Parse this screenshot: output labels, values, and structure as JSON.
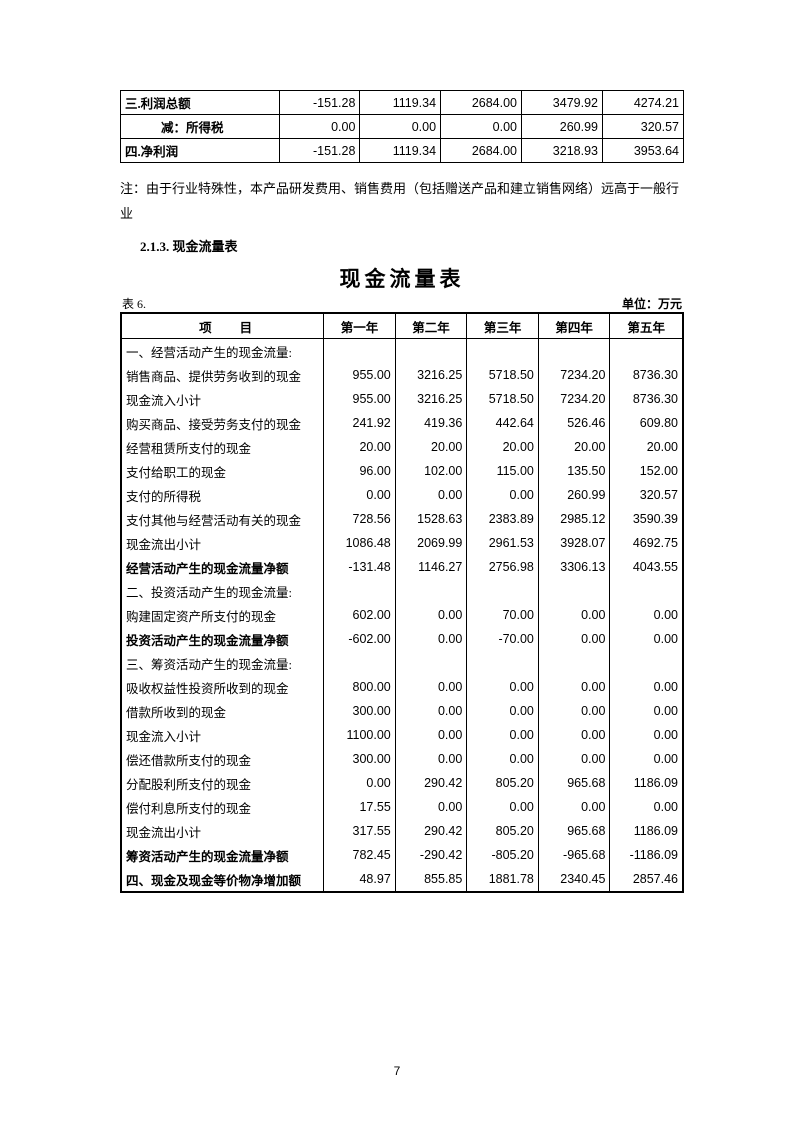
{
  "small_table": {
    "type": "table",
    "columns_count": 6,
    "rows": [
      {
        "label": "三.利润总额",
        "bold": true,
        "indent": false,
        "values": [
          "-151.28",
          "1119.34",
          "2684.00",
          "3479.92",
          "4274.21"
        ]
      },
      {
        "label": "减：所得税",
        "bold": true,
        "indent": true,
        "values": [
          "0.00",
          "0.00",
          "0.00",
          "260.99",
          "320.57"
        ]
      },
      {
        "label": "四.净利润",
        "bold": true,
        "indent": false,
        "values": [
          "-151.28",
          "1119.34",
          "2684.00",
          "3218.93",
          "3953.64"
        ]
      }
    ],
    "text_color": "#000000",
    "border_color": "#000000",
    "fontsize": 12.5
  },
  "note_text": "注：由于行业特殊性，本产品研发费用、销售费用（包括赠送产品和建立销售网络）远高于一般行业",
  "subsection_label": "2.1.3. 现金流量表",
  "main_title": "现金流量表",
  "table_number_label": "表 6.",
  "unit_label": "单位：万元",
  "main_table": {
    "type": "table",
    "header": {
      "item": "项目",
      "years": [
        "第一年",
        "第二年",
        "第三年",
        "第四年",
        "第五年"
      ]
    },
    "rows": [
      {
        "label": "一、经营活动产生的现金流量:",
        "level": 1,
        "bold": false,
        "values": [
          "",
          "",
          "",
          "",
          ""
        ]
      },
      {
        "label": "销售商品、提供劳务收到的现金",
        "level": 2,
        "bold": false,
        "values": [
          "955.00",
          "3216.25",
          "5718.50",
          "7234.20",
          "8736.30"
        ]
      },
      {
        "label": "现金流入小计",
        "level": 2,
        "bold": false,
        "values": [
          "955.00",
          "3216.25",
          "5718.50",
          "7234.20",
          "8736.30"
        ]
      },
      {
        "label": "购买商品、接受劳务支付的现金",
        "level": 2,
        "bold": false,
        "values": [
          "241.92",
          "419.36",
          "442.64",
          "526.46",
          "609.80"
        ]
      },
      {
        "label": "经营租赁所支付的现金",
        "level": 2,
        "bold": false,
        "values": [
          "20.00",
          "20.00",
          "20.00",
          "20.00",
          "20.00"
        ]
      },
      {
        "label": "支付给职工的现金",
        "level": 2,
        "bold": false,
        "values": [
          "96.00",
          "102.00",
          "115.00",
          "135.50",
          "152.00"
        ]
      },
      {
        "label": "支付的所得税",
        "level": 2,
        "bold": false,
        "values": [
          "0.00",
          "0.00",
          "0.00",
          "260.99",
          "320.57"
        ]
      },
      {
        "label": "支付其他与经营活动有关的现金",
        "level": 2,
        "bold": false,
        "values": [
          "728.56",
          "1528.63",
          "2383.89",
          "2985.12",
          "3590.39"
        ]
      },
      {
        "label": "现金流出小计",
        "level": 2,
        "bold": false,
        "values": [
          "1086.48",
          "2069.99",
          "2961.53",
          "3928.07",
          "4692.75"
        ]
      },
      {
        "label": "经营活动产生的现金流量净额",
        "level": 2,
        "bold": true,
        "values": [
          "-131.48",
          "1146.27",
          "2756.98",
          "3306.13",
          "4043.55"
        ]
      },
      {
        "label": "二、投资活动产生的现金流量:",
        "level": 1,
        "bold": false,
        "values": [
          "",
          "",
          "",
          "",
          ""
        ]
      },
      {
        "label": "购建固定资产所支付的现金",
        "level": 2,
        "bold": false,
        "values": [
          "602.00",
          "0.00",
          "70.00",
          "0.00",
          "0.00"
        ]
      },
      {
        "label": "投资活动产生的现金流量净额",
        "level": 2,
        "bold": true,
        "values": [
          "-602.00",
          "0.00",
          "-70.00",
          "0.00",
          "0.00"
        ]
      },
      {
        "label": "三、筹资活动产生的现金流量:",
        "level": 1,
        "bold": false,
        "values": [
          "",
          "",
          "",
          "",
          ""
        ]
      },
      {
        "label": "吸收权益性投资所收到的现金",
        "level": 2,
        "bold": false,
        "values": [
          "800.00",
          "0.00",
          "0.00",
          "0.00",
          "0.00"
        ]
      },
      {
        "label": "借款所收到的现金",
        "level": 2,
        "bold": false,
        "values": [
          "300.00",
          "0.00",
          "0.00",
          "0.00",
          "0.00"
        ]
      },
      {
        "label": "现金流入小计",
        "level": 2,
        "bold": false,
        "values": [
          "1100.00",
          "0.00",
          "0.00",
          "0.00",
          "0.00"
        ]
      },
      {
        "label": "偿还借款所支付的现金",
        "level": 3,
        "bold": false,
        "values": [
          "300.00",
          "0.00",
          "0.00",
          "0.00",
          "0.00"
        ]
      },
      {
        "label": "分配股利所支付的现金",
        "level": 2,
        "bold": false,
        "values": [
          "0.00",
          "290.42",
          "805.20",
          "965.68",
          "1186.09"
        ]
      },
      {
        "label": "偿付利息所支付的现金",
        "level": 2,
        "bold": false,
        "values": [
          "17.55",
          "0.00",
          "0.00",
          "0.00",
          "0.00"
        ]
      },
      {
        "label": "现金流出小计",
        "level": 2,
        "bold": false,
        "values": [
          "317.55",
          "290.42",
          "805.20",
          "965.68",
          "1186.09"
        ]
      },
      {
        "label": "筹资活动产生的现金流量净额",
        "level": 2,
        "bold": true,
        "values": [
          "782.45",
          "-290.42",
          "-805.20",
          "-965.68",
          "-1186.09"
        ]
      },
      {
        "label": "四、现金及现金等价物净增加额",
        "level": 1,
        "bold": true,
        "values": [
          "48.97",
          "855.85",
          "1881.78",
          "2340.45",
          "2857.46"
        ]
      }
    ],
    "outer_border_color": "#000000",
    "inner_border_color": "#000000",
    "header_fontsize": 12.5,
    "body_fontsize": 12.5,
    "outer_border_width": 2.2,
    "inner_border_width": 1
  },
  "page_number": "7",
  "colors": {
    "text": "#000000",
    "background": "#ffffff"
  }
}
